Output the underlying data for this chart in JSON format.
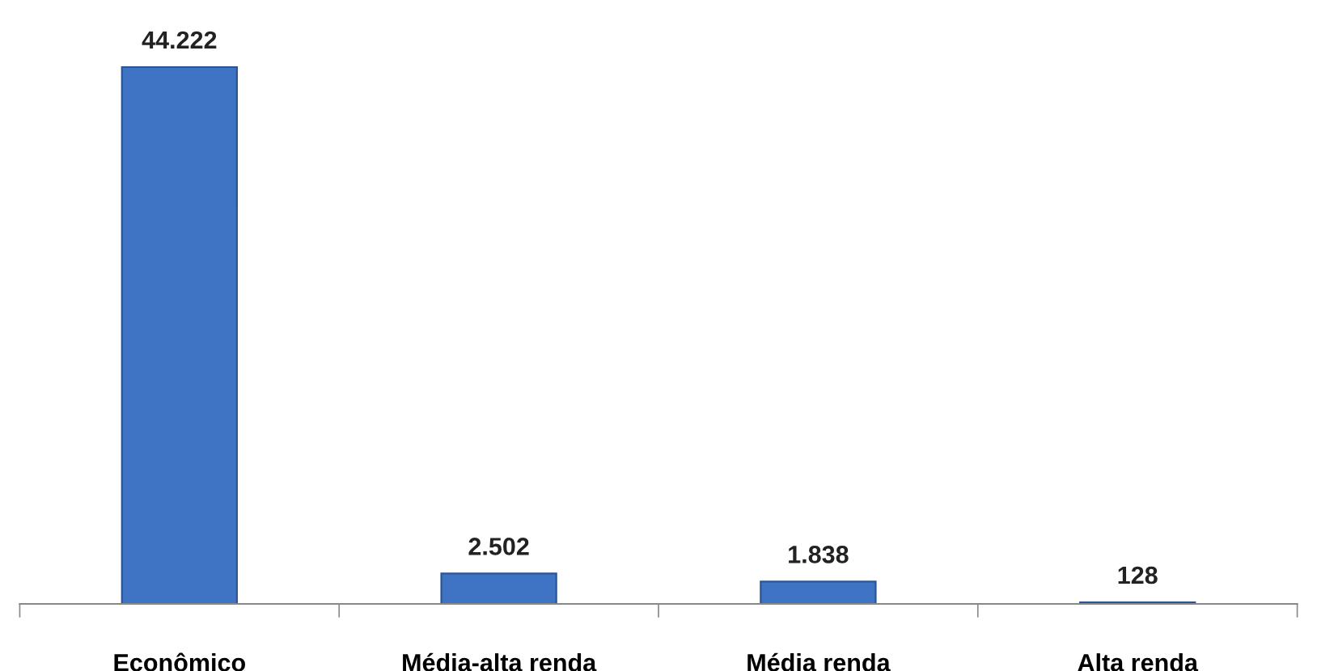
{
  "chart_data": {
    "type": "bar",
    "categories": [
      "Econômico",
      "Média-alta renda",
      "Média renda",
      "Alta renda"
    ],
    "values": [
      44222,
      2502,
      1838,
      128
    ],
    "value_labels": [
      "44.222",
      "2.502",
      "1.838",
      "128"
    ],
    "color": "#3f74c4",
    "grid": false,
    "legend": false,
    "tick_labels": "x"
  }
}
